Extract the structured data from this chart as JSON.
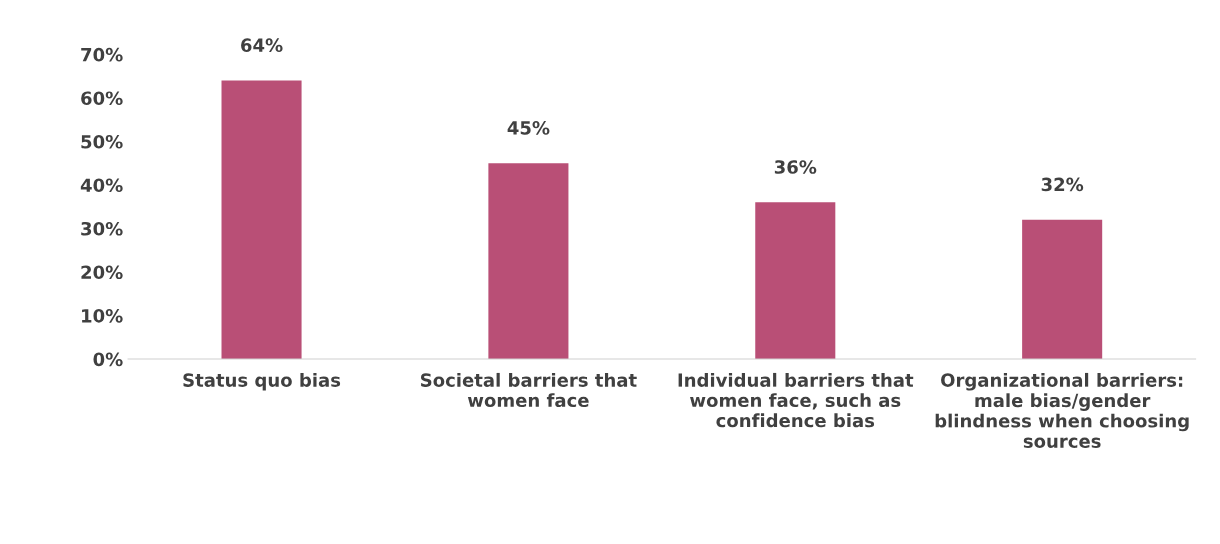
{
  "chart_data": {
    "type": "bar",
    "categories": [
      "Status quo bias",
      "Societal barriers that women face",
      "Individual barriers that women face, such as confidence bias",
      "Organizational barriers: male bias/gender blindness when choosing sources"
    ],
    "values": [
      64,
      45,
      36,
      32
    ],
    "value_labels": [
      "64%",
      "45%",
      "36%",
      "32%"
    ],
    "color": "#b94f76",
    "grid": false,
    "ylim": [
      0,
      70
    ],
    "yticks": [
      {
        "value": 0,
        "label": "0%"
      },
      {
        "value": 10,
        "label": "10%"
      },
      {
        "value": 20,
        "label": "20%"
      },
      {
        "value": 30,
        "label": "30%"
      },
      {
        "value": 40,
        "label": "40%"
      },
      {
        "value": 50,
        "label": "50%"
      },
      {
        "value": 60,
        "label": "60%"
      },
      {
        "value": 70,
        "label": "70%"
      }
    ]
  }
}
